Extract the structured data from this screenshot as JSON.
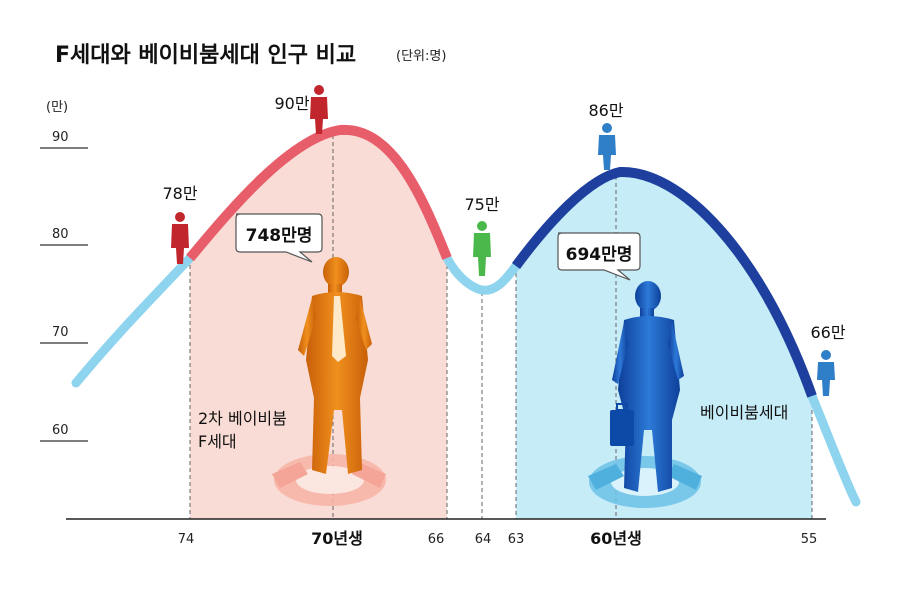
{
  "title": "F세대와 베이비붐세대 인구 비교",
  "unit": "(단위:명)",
  "chart_data": {
    "type": "area",
    "y_unit_label": "(만)",
    "yticks": [
      "90",
      "80",
      "70",
      "60"
    ],
    "xticks": [
      {
        "label": "74",
        "bold": false
      },
      {
        "label": "70년생",
        "bold": true
      },
      {
        "label": "66",
        "bold": false
      },
      {
        "label": "64",
        "bold": false
      },
      {
        "label": "63",
        "bold": false
      },
      {
        "label": "60년생",
        "bold": true
      },
      {
        "label": "55",
        "bold": false
      }
    ],
    "peak_labels": [
      {
        "text": "78만",
        "color": "#c0262c"
      },
      {
        "text": "90만",
        "color": "#c0262c"
      },
      {
        "text": "75만",
        "color": "#3fa33f"
      },
      {
        "text": "86만",
        "color": "#2f7fc8"
      },
      {
        "text": "66만",
        "color": "#2f7fc8"
      }
    ],
    "callouts": [
      "748만명",
      "694만명"
    ],
    "generations": [
      {
        "lines": [
          "2차 베이비붐",
          "F세대"
        ],
        "color": "#c96a1a"
      },
      {
        "lines": [
          "베이비붐세대"
        ],
        "color": "#1e5db5"
      }
    ],
    "colors": {
      "f_gen_curve": "#e85d6a",
      "f_gen_fill": "#fadcd6",
      "boom_curve": "#1f3f9e",
      "boom_fill": "#c6ecf8",
      "outer_curve": "#8fd4ef",
      "orange_figure": "#e07c17",
      "blue_figure": "#1e63c4"
    }
  }
}
